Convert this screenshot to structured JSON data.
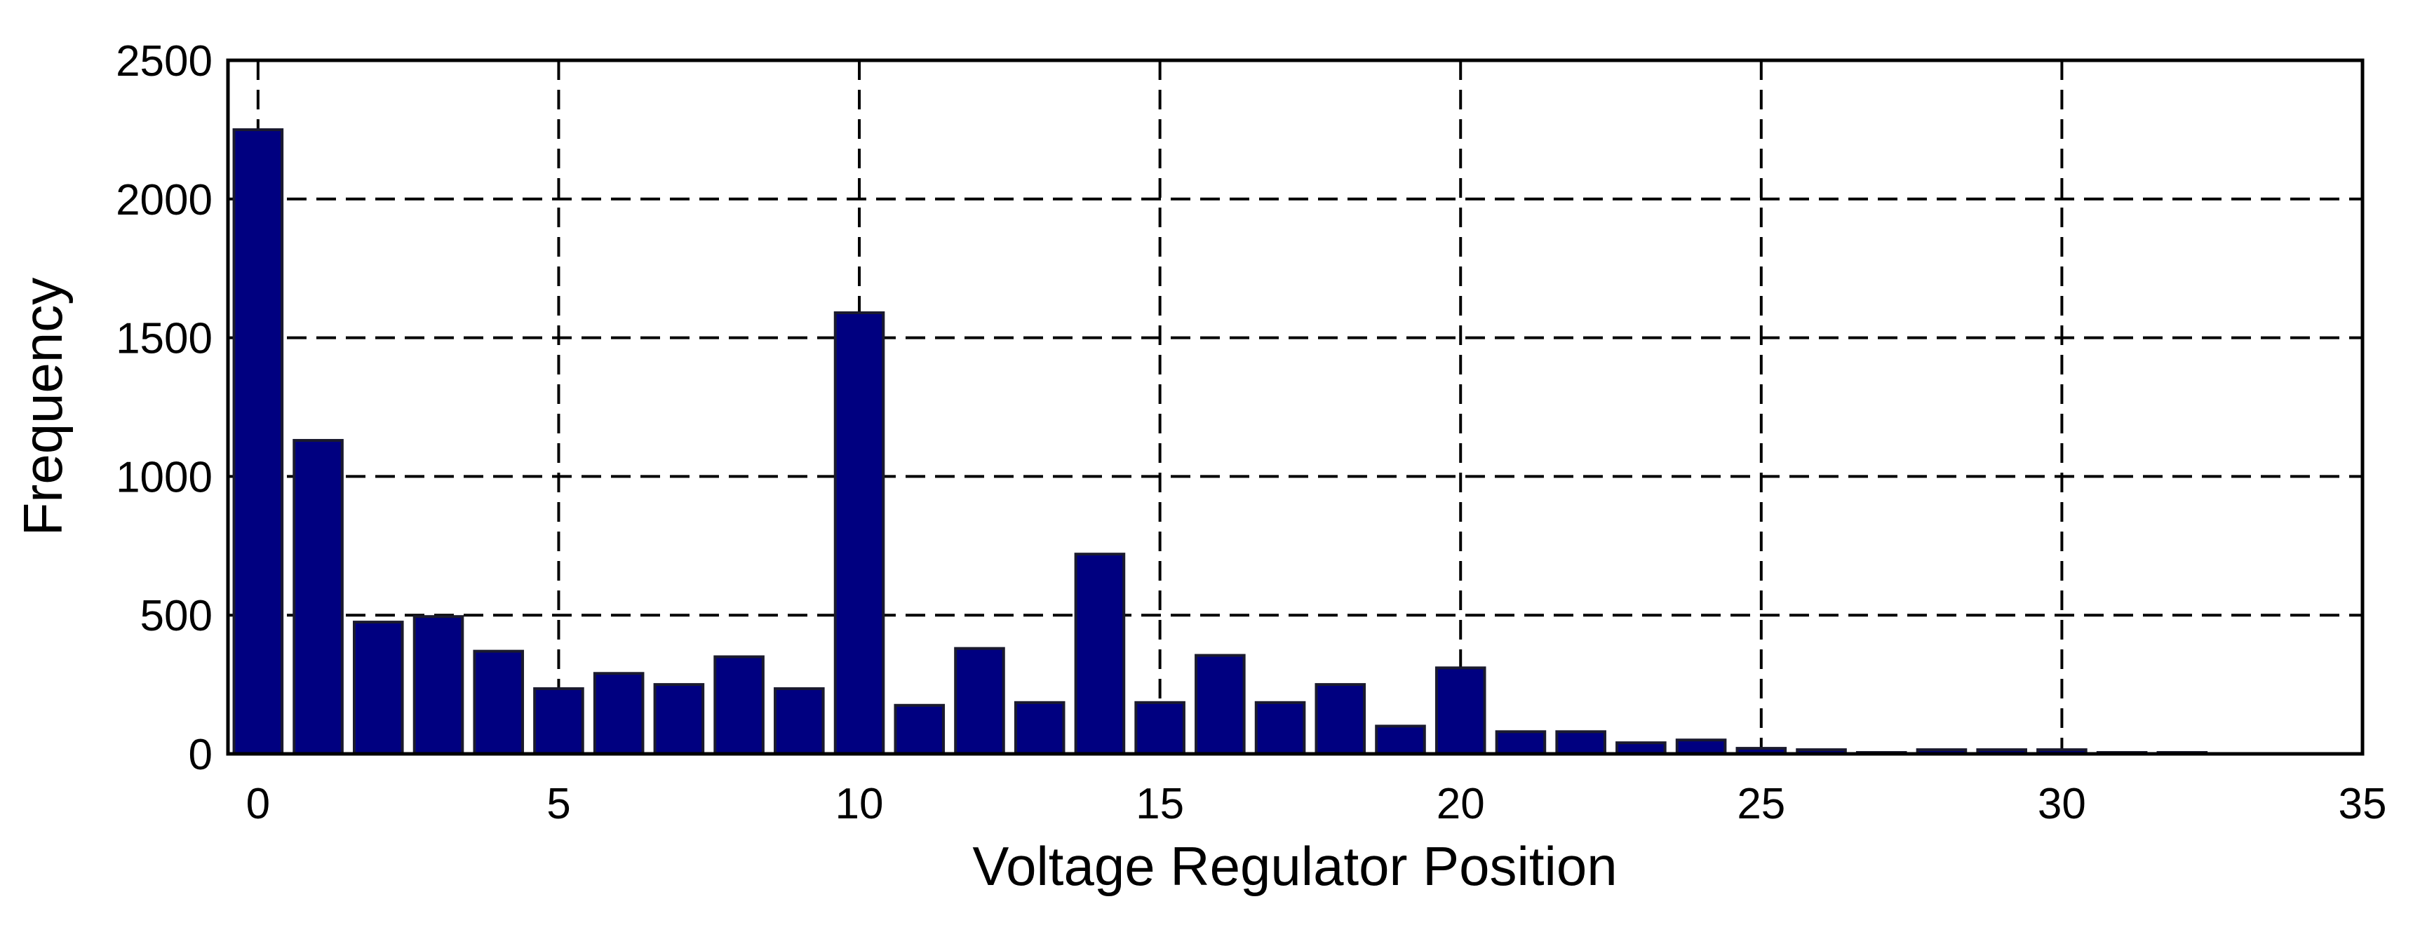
{
  "chart_data": {
    "type": "bar",
    "x_label": "Voltage Regulator Position",
    "y_label": "Frequency",
    "x": [
      0,
      1,
      2,
      3,
      4,
      5,
      6,
      7,
      8,
      9,
      10,
      11,
      12,
      13,
      14,
      15,
      16,
      17,
      18,
      19,
      20,
      21,
      22,
      23,
      24,
      25,
      26,
      27,
      28,
      29,
      30,
      31,
      32
    ],
    "values": [
      2250,
      1130,
      475,
      495,
      370,
      235,
      290,
      250,
      350,
      235,
      1590,
      175,
      380,
      185,
      720,
      185,
      355,
      185,
      250,
      100,
      310,
      80,
      80,
      40,
      50,
      20,
      15,
      5,
      15,
      15,
      15,
      5,
      5
    ],
    "color": "#000080",
    "xlim": [
      -0.5,
      35
    ],
    "xticks": [
      0,
      5,
      10,
      15,
      20,
      25,
      30,
      35
    ],
    "ylim": [
      0,
      2500
    ],
    "yticks": [
      0,
      500,
      1000,
      1500,
      2000,
      2500
    ],
    "grid": true
  }
}
